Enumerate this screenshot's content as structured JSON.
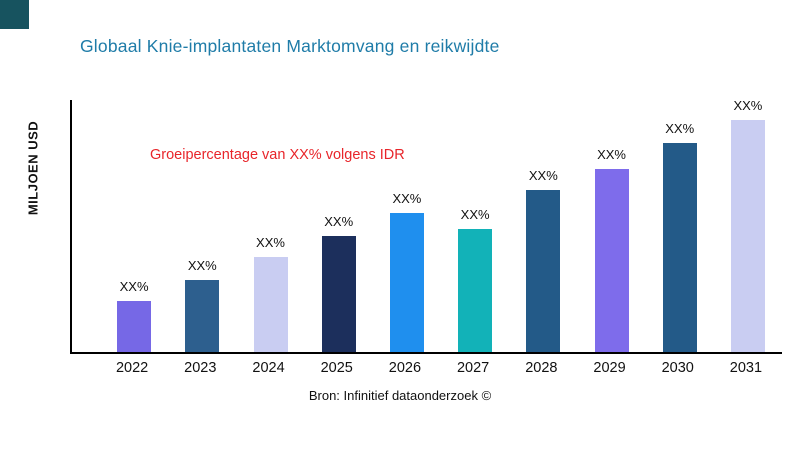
{
  "header": {
    "title": "Globaal Knie-implantaten Marktomvang en reikwijdte"
  },
  "annotation": {
    "text": "Groeipercentage van XX% volgens IDR"
  },
  "source": "Bron: Infinitief dataonderzoek ©",
  "colors": {
    "title": "#1f7ca8",
    "annotation": "#e8252a",
    "corner_square": "#17535f",
    "axis": "#000000"
  },
  "chart_data": {
    "type": "bar",
    "title": "Globaal Knie-implantaten Marktomvang en reikwijdte",
    "xlabel": "",
    "ylabel": "MILJOEN USD",
    "categories": [
      "2022",
      "2023",
      "2024",
      "2025",
      "2026",
      "2027",
      "2028",
      "2029",
      "2030",
      "2031"
    ],
    "bar_value_labels": [
      "XX%",
      "XX%",
      "XX%",
      "XX%",
      "XX%",
      "XX%",
      "XX%",
      "XX%",
      "XX%",
      "XX%"
    ],
    "values_relative": [
      22,
      31,
      41,
      50,
      60,
      53,
      70,
      79,
      90,
      100
    ],
    "bar_colors": [
      "#7668e6",
      "#2d5f8e",
      "#c9cdf2",
      "#1c2f5c",
      "#1f8fee",
      "#12b2b8",
      "#235a88",
      "#7e6ceb",
      "#235a88",
      "#c9cdf2"
    ],
    "ylim": [
      0,
      100
    ],
    "grid": false,
    "legend_position": "none",
    "note": "Bars are labeled XX% placeholders; values_relative are visual height estimates (max bar = 100)."
  }
}
